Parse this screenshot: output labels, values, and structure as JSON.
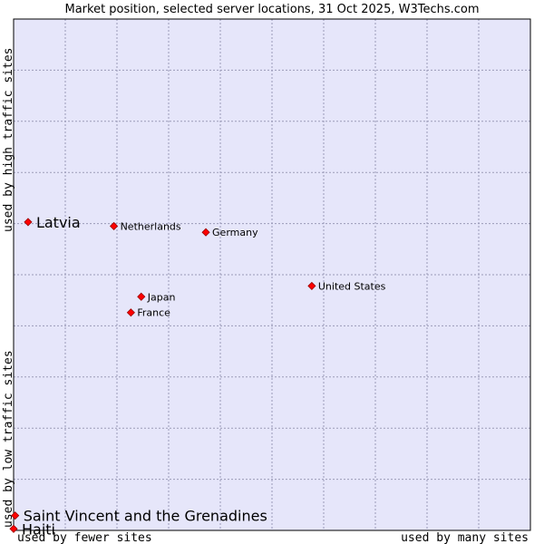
{
  "chart_data": {
    "type": "scatter",
    "title": "Market position, selected server locations, 31 Oct 2025, W3Techs.com",
    "x_axis": {
      "low_label": "used by fewer sites",
      "high_label": "used by many sites"
    },
    "y_axis": {
      "low_label": "used by low traffic sites",
      "high_label": "used by high traffic sites"
    },
    "xlim": [
      0,
      100
    ],
    "ylim": [
      0,
      100
    ],
    "grid": true,
    "points": [
      {
        "name": "Latvia",
        "x": 2.8,
        "y": 60.3,
        "emphasis": true
      },
      {
        "name": "Netherlands",
        "x": 19.4,
        "y": 59.5,
        "emphasis": false
      },
      {
        "name": "Germany",
        "x": 37.2,
        "y": 58.3,
        "emphasis": false
      },
      {
        "name": "United States",
        "x": 57.7,
        "y": 47.8,
        "emphasis": false
      },
      {
        "name": "Japan",
        "x": 24.7,
        "y": 45.7,
        "emphasis": false
      },
      {
        "name": "France",
        "x": 22.7,
        "y": 42.6,
        "emphasis": false
      },
      {
        "name": "Saint Vincent and the Grenadines",
        "x": 0.3,
        "y": 2.9,
        "emphasis": true
      },
      {
        "name": "Haiti",
        "x": 0.0,
        "y": 0.3,
        "emphasis": true
      }
    ],
    "colors": {
      "plot_background": "#e6e6fa",
      "grid": "#9b9bb8",
      "border": "#000000",
      "marker_fill": "#ff0000",
      "marker_stroke": "#990000"
    }
  }
}
